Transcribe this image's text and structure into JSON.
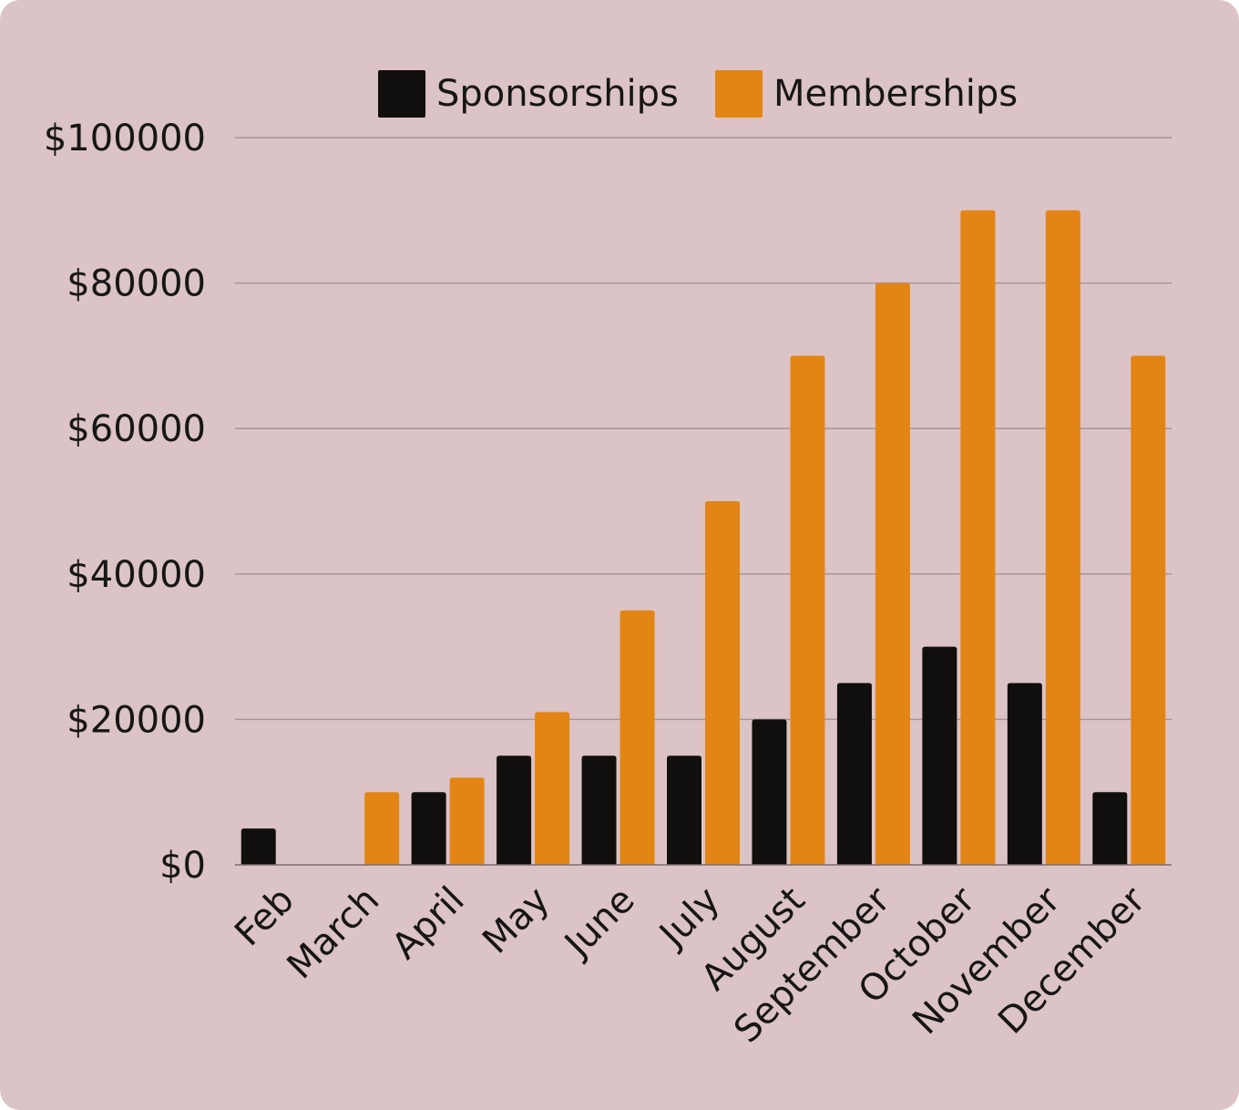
{
  "chart_data": {
    "type": "bar",
    "categories": [
      "Feb",
      "March",
      "April",
      "May",
      "June",
      "July",
      "August",
      "September",
      "October",
      "November",
      "December"
    ],
    "series": [
      {
        "name": "Sponsorships",
        "color": "#110f0d",
        "values": [
          5000,
          0,
          10000,
          15000,
          15000,
          15000,
          20000,
          25000,
          30000,
          25000,
          10000
        ]
      },
      {
        "name": "Memberships",
        "color": "#e28514",
        "values": [
          0,
          10000,
          12000,
          21000,
          35000,
          50000,
          70000,
          80000,
          90000,
          90000,
          70000
        ]
      }
    ],
    "ylim": [
      0,
      100000
    ],
    "yticks": [
      0,
      20000,
      40000,
      60000,
      80000,
      100000
    ],
    "ytick_labels": [
      "$0",
      "$20000",
      "$40000",
      "$60000",
      "$80000",
      "$100000"
    ],
    "grid": true,
    "legend_position": "top-center",
    "background_color": "#dcc3c5",
    "grid_color": "#a89496"
  }
}
